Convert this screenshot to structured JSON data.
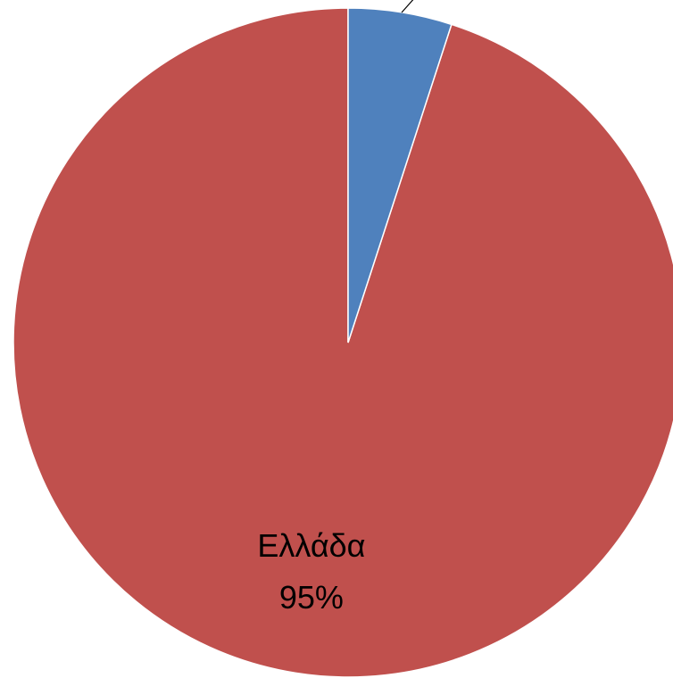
{
  "chart_data": {
    "type": "pie",
    "categories": [
      null,
      "Ελλάδα"
    ],
    "values": [
      5,
      95
    ],
    "value_labels": [
      null,
      "95%"
    ],
    "colors": [
      "#4f81bd",
      "#c0504d"
    ]
  }
}
